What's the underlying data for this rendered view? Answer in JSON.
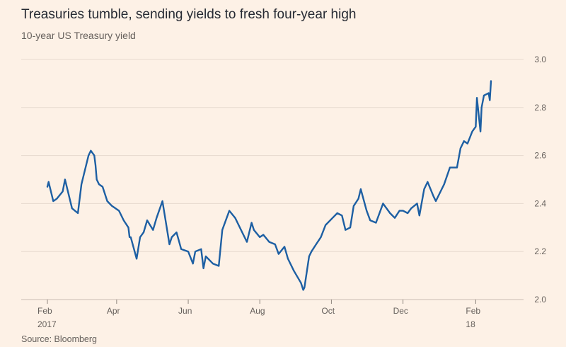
{
  "header": {
    "title": "Treasuries tumble, sending yields to fresh four-year high",
    "subtitle": "10-year US Treasury yield"
  },
  "footer": {
    "source": "Source: Bloomberg"
  },
  "colors": {
    "background": "#fdf1e6",
    "line": "#1d5fa3",
    "grid": "#e6d9ce",
    "text": "#66605c"
  },
  "chart_data": {
    "type": "line",
    "title": "Treasuries tumble, sending yields to fresh four-year high",
    "subtitle": "10-year US Treasury yield",
    "xlabel": "",
    "ylabel": "",
    "ylim": [
      2.0,
      3.0
    ],
    "y_ticks": [
      "2.0",
      "2.2",
      "2.4",
      "2.6",
      "2.8",
      "3.0"
    ],
    "y_axis_position": "right",
    "grid": "horizontal",
    "x_ticks": [
      {
        "date": "2017-02-01",
        "label": "Feb",
        "sublabel": "2017"
      },
      {
        "date": "2017-04-01",
        "label": "Apr",
        "sublabel": ""
      },
      {
        "date": "2017-06-01",
        "label": "Jun",
        "sublabel": ""
      },
      {
        "date": "2017-08-01",
        "label": "Aug",
        "sublabel": ""
      },
      {
        "date": "2017-10-01",
        "label": "Oct",
        "sublabel": ""
      },
      {
        "date": "2017-12-01",
        "label": "Dec",
        "sublabel": ""
      },
      {
        "date": "2018-02-01",
        "label": "Feb",
        "sublabel": "18"
      }
    ],
    "series": [
      {
        "x": [
          "2017-02-01",
          "2017-02-02",
          "2017-02-06",
          "2017-02-09",
          "2017-02-14",
          "2017-02-16",
          "2017-02-22",
          "2017-02-27",
          "2017-03-02",
          "2017-03-08",
          "2017-03-10",
          "2017-03-13",
          "2017-03-14",
          "2017-03-15",
          "2017-03-17",
          "2017-03-20",
          "2017-03-24",
          "2017-03-28",
          "2017-04-03",
          "2017-04-07",
          "2017-04-11",
          "2017-04-12",
          "2017-04-13",
          "2017-04-18",
          "2017-04-21",
          "2017-04-24",
          "2017-04-27",
          "2017-05-02",
          "2017-05-05",
          "2017-05-10",
          "2017-05-12",
          "2017-05-16",
          "2017-05-18",
          "2017-05-22",
          "2017-05-26",
          "2017-06-01",
          "2017-06-05",
          "2017-06-07",
          "2017-06-12",
          "2017-06-14",
          "2017-06-16",
          "2017-06-22",
          "2017-06-27",
          "2017-06-30",
          "2017-07-06",
          "2017-07-11",
          "2017-07-13",
          "2017-07-18",
          "2017-07-21",
          "2017-07-25",
          "2017-07-27",
          "2017-08-01",
          "2017-08-04",
          "2017-08-09",
          "2017-08-14",
          "2017-08-17",
          "2017-08-22",
          "2017-08-25",
          "2017-08-30",
          "2017-09-05",
          "2017-09-07",
          "2017-09-08",
          "2017-09-12",
          "2017-09-14",
          "2017-09-18",
          "2017-09-22",
          "2017-09-26",
          "2017-10-02",
          "2017-10-06",
          "2017-10-10",
          "2017-10-13",
          "2017-10-17",
          "2017-10-20",
          "2017-10-24",
          "2017-10-26",
          "2017-10-31",
          "2017-11-03",
          "2017-11-08",
          "2017-11-14",
          "2017-11-20",
          "2017-11-24",
          "2017-11-28",
          "2017-12-01",
          "2017-12-05",
          "2017-12-08",
          "2017-12-13",
          "2017-12-15",
          "2017-12-19",
          "2017-12-22",
          "2017-12-27",
          "2017-12-29",
          "2018-01-03",
          "2018-01-05",
          "2018-01-10",
          "2018-01-12",
          "2018-01-16",
          "2018-01-19",
          "2018-01-22",
          "2018-01-25",
          "2018-01-29",
          "2018-02-01",
          "2018-02-02",
          "2018-02-05",
          "2018-02-06",
          "2018-02-08",
          "2018-02-12",
          "2018-02-13",
          "2018-02-14"
        ],
        "values": [
          2.47,
          2.49,
          2.41,
          2.42,
          2.45,
          2.5,
          2.38,
          2.36,
          2.48,
          2.6,
          2.62,
          2.6,
          2.56,
          2.5,
          2.48,
          2.47,
          2.41,
          2.39,
          2.37,
          2.33,
          2.3,
          2.26,
          2.26,
          2.17,
          2.26,
          2.28,
          2.33,
          2.29,
          2.34,
          2.41,
          2.35,
          2.23,
          2.26,
          2.28,
          2.21,
          2.2,
          2.15,
          2.2,
          2.21,
          2.13,
          2.18,
          2.15,
          2.14,
          2.29,
          2.37,
          2.34,
          2.32,
          2.27,
          2.24,
          2.32,
          2.29,
          2.26,
          2.27,
          2.24,
          2.23,
          2.19,
          2.22,
          2.17,
          2.12,
          2.07,
          2.04,
          2.05,
          2.18,
          2.2,
          2.23,
          2.26,
          2.31,
          2.34,
          2.36,
          2.35,
          2.29,
          2.3,
          2.39,
          2.42,
          2.46,
          2.37,
          2.33,
          2.32,
          2.4,
          2.36,
          2.34,
          2.37,
          2.37,
          2.36,
          2.38,
          2.4,
          2.35,
          2.46,
          2.49,
          2.43,
          2.41,
          2.46,
          2.48,
          2.55,
          2.55,
          2.55,
          2.63,
          2.66,
          2.65,
          2.7,
          2.72,
          2.84,
          2.7,
          2.8,
          2.85,
          2.86,
          2.83,
          2.91
        ]
      }
    ]
  }
}
